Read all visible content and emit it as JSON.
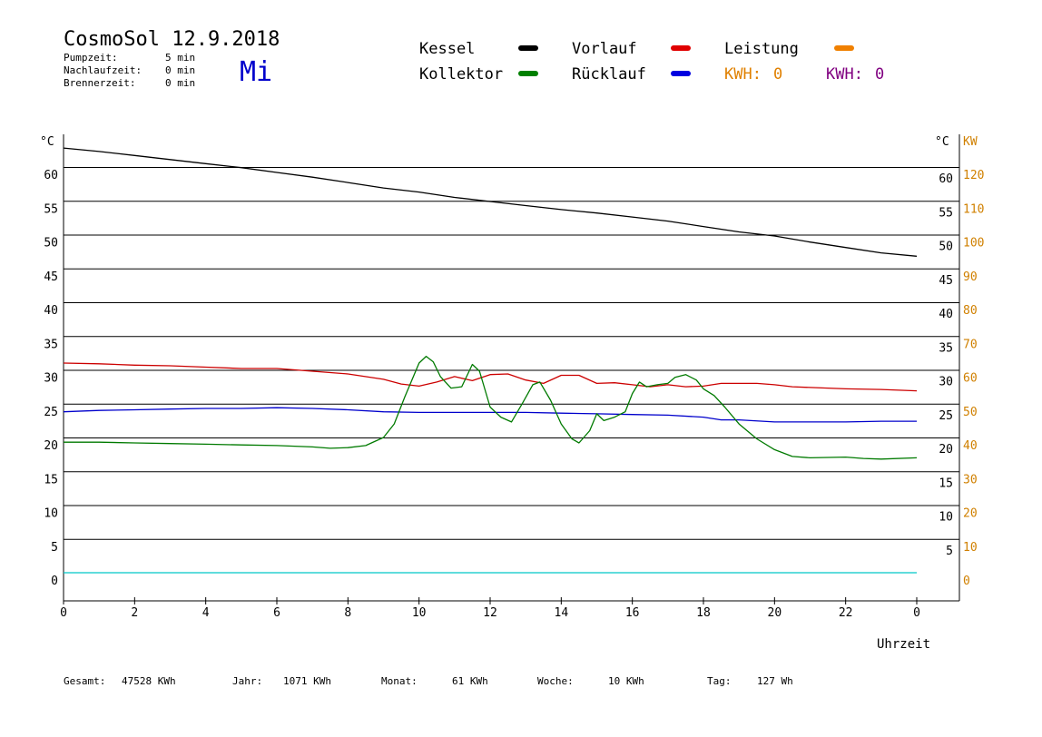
{
  "header": {
    "title": "CosmoSol 12.9.2018",
    "day": "Mi",
    "stats": [
      {
        "label": "Pumpzeit:",
        "value": "5 min"
      },
      {
        "label": "Nachlaufzeit:",
        "value": "0 min"
      },
      {
        "label": "Brennerzeit:",
        "value": "0 min"
      }
    ]
  },
  "legend": {
    "items": [
      {
        "label": "Kessel",
        "color": "#000000"
      },
      {
        "label": "Kollektor",
        "color": "#008000"
      },
      {
        "label": "Vorlauf",
        "color": "#e00000"
      },
      {
        "label": "Rücklauf",
        "color": "#0000e0"
      },
      {
        "label": "Leistung",
        "color": "#f08000"
      }
    ],
    "kwh_orange": {
      "label": "KWH:",
      "value": "0",
      "color": "#e08000"
    },
    "kwh_purple": {
      "label": "KWH:",
      "value": "0",
      "color": "#800080"
    }
  },
  "axis": {
    "left_unit": "°C",
    "right_unit": "°C",
    "kw_unit": "KW",
    "xlabel": "Uhrzeit",
    "kw_color": "#d08000"
  },
  "footer": [
    {
      "label": "Gesamt:",
      "value": "47528 KWh"
    },
    {
      "label": "Jahr:",
      "value": "1071 KWh"
    },
    {
      "label": "Monat:",
      "value": "61 KWh"
    },
    {
      "label": "Woche:",
      "value": "10 KWh"
    },
    {
      "label": "Tag:",
      "value": "127 Wh"
    }
  ],
  "chart_data": {
    "type": "line",
    "xlim": [
      0,
      24
    ],
    "ylim": [
      -4,
      65
    ],
    "grid": true,
    "y_ticks_left": [
      0,
      5,
      10,
      15,
      20,
      25,
      30,
      35,
      40,
      45,
      50,
      55,
      60
    ],
    "y_ticks_right": [
      5,
      10,
      15,
      20,
      25,
      30,
      35,
      40,
      45,
      50,
      55,
      60
    ],
    "kw_ticks": [
      0,
      10,
      20,
      30,
      40,
      50,
      60,
      70,
      80,
      90,
      100,
      110,
      120
    ],
    "x_tick_labels": [
      "0",
      "2",
      "4",
      "6",
      "8",
      "10",
      "12",
      "14",
      "16",
      "18",
      "20",
      "22",
      "0"
    ],
    "series": [
      {
        "name": "Kessel",
        "color": "#000000",
        "points": [
          [
            0,
            62.8
          ],
          [
            1,
            62.3
          ],
          [
            2,
            61.7
          ],
          [
            3,
            61.1
          ],
          [
            4,
            60.5
          ],
          [
            5,
            59.9
          ],
          [
            6,
            59.2
          ],
          [
            7,
            58.5
          ],
          [
            8,
            57.7
          ],
          [
            9,
            56.9
          ],
          [
            10,
            56.3
          ],
          [
            11,
            55.5
          ],
          [
            12,
            54.9
          ],
          [
            13,
            54.3
          ],
          [
            14,
            53.7
          ],
          [
            15,
            53.2
          ],
          [
            16,
            52.6
          ],
          [
            17,
            52.0
          ],
          [
            18,
            51.2
          ],
          [
            19,
            50.4
          ],
          [
            20,
            49.8
          ],
          [
            21,
            48.9
          ],
          [
            22,
            48.1
          ],
          [
            23,
            47.3
          ],
          [
            24,
            46.8
          ]
        ]
      },
      {
        "name": "Vorlauf",
        "color": "#cc0000",
        "points": [
          [
            0,
            31.0
          ],
          [
            1,
            30.9
          ],
          [
            2,
            30.7
          ],
          [
            3,
            30.6
          ],
          [
            4,
            30.4
          ],
          [
            5,
            30.2
          ],
          [
            6,
            30.2
          ],
          [
            7,
            29.8
          ],
          [
            8,
            29.4
          ],
          [
            9,
            28.6
          ],
          [
            9.5,
            27.9
          ],
          [
            10,
            27.6
          ],
          [
            10.5,
            28.2
          ],
          [
            11,
            29.0
          ],
          [
            11.5,
            28.4
          ],
          [
            12,
            29.3
          ],
          [
            12.5,
            29.4
          ],
          [
            13,
            28.5
          ],
          [
            13.5,
            28.0
          ],
          [
            14,
            29.2
          ],
          [
            14.5,
            29.2
          ],
          [
            15,
            28.0
          ],
          [
            15.5,
            28.1
          ],
          [
            16,
            27.8
          ],
          [
            16.5,
            27.5
          ],
          [
            17,
            27.8
          ],
          [
            17.5,
            27.5
          ],
          [
            18,
            27.6
          ],
          [
            18.5,
            28.0
          ],
          [
            19,
            28.0
          ],
          [
            19.5,
            28.0
          ],
          [
            20,
            27.8
          ],
          [
            20.5,
            27.5
          ],
          [
            21,
            27.4
          ],
          [
            22,
            27.2
          ],
          [
            23,
            27.1
          ],
          [
            24,
            26.9
          ]
        ]
      },
      {
        "name": "Rücklauf",
        "color": "#0000cc",
        "points": [
          [
            0,
            23.8
          ],
          [
            1,
            24.0
          ],
          [
            2,
            24.1
          ],
          [
            3,
            24.2
          ],
          [
            4,
            24.3
          ],
          [
            5,
            24.3
          ],
          [
            6,
            24.4
          ],
          [
            7,
            24.3
          ],
          [
            8,
            24.1
          ],
          [
            9,
            23.8
          ],
          [
            10,
            23.7
          ],
          [
            11,
            23.7
          ],
          [
            12,
            23.7
          ],
          [
            13,
            23.7
          ],
          [
            14,
            23.6
          ],
          [
            15,
            23.5
          ],
          [
            16,
            23.4
          ],
          [
            17,
            23.3
          ],
          [
            18,
            23.0
          ],
          [
            18.5,
            22.6
          ],
          [
            19,
            22.6
          ],
          [
            20,
            22.3
          ],
          [
            21,
            22.3
          ],
          [
            22,
            22.3
          ],
          [
            23,
            22.4
          ],
          [
            24,
            22.4
          ]
        ]
      },
      {
        "name": "Kollektor",
        "color": "#007a00",
        "points": [
          [
            0,
            19.3
          ],
          [
            1,
            19.3
          ],
          [
            2,
            19.2
          ],
          [
            3,
            19.1
          ],
          [
            4,
            19.0
          ],
          [
            5,
            18.9
          ],
          [
            6,
            18.8
          ],
          [
            7,
            18.6
          ],
          [
            7.5,
            18.4
          ],
          [
            8,
            18.5
          ],
          [
            8.5,
            18.8
          ],
          [
            9,
            20.0
          ],
          [
            9.3,
            22.0
          ],
          [
            9.6,
            26.0
          ],
          [
            9.8,
            28.5
          ],
          [
            10.0,
            31.0
          ],
          [
            10.2,
            32.0
          ],
          [
            10.4,
            31.2
          ],
          [
            10.6,
            29.0
          ],
          [
            10.9,
            27.3
          ],
          [
            11.2,
            27.5
          ],
          [
            11.5,
            30.8
          ],
          [
            11.7,
            29.8
          ],
          [
            12,
            24.5
          ],
          [
            12.3,
            23.0
          ],
          [
            12.6,
            22.3
          ],
          [
            12.9,
            25.0
          ],
          [
            13.2,
            27.8
          ],
          [
            13.4,
            28.2
          ],
          [
            13.7,
            25.5
          ],
          [
            14.0,
            22.0
          ],
          [
            14.3,
            19.8
          ],
          [
            14.5,
            19.2
          ],
          [
            14.8,
            21.0
          ],
          [
            15.0,
            23.5
          ],
          [
            15.2,
            22.5
          ],
          [
            15.5,
            23.0
          ],
          [
            15.8,
            23.8
          ],
          [
            16.0,
            26.5
          ],
          [
            16.2,
            28.2
          ],
          [
            16.4,
            27.5
          ],
          [
            16.7,
            27.8
          ],
          [
            17.0,
            28.0
          ],
          [
            17.2,
            28.9
          ],
          [
            17.5,
            29.3
          ],
          [
            17.8,
            28.5
          ],
          [
            18.0,
            27.2
          ],
          [
            18.3,
            26.2
          ],
          [
            18.6,
            24.5
          ],
          [
            19.0,
            22.0
          ],
          [
            19.5,
            19.8
          ],
          [
            20.0,
            18.2
          ],
          [
            20.5,
            17.2
          ],
          [
            21,
            17.0
          ],
          [
            22,
            17.1
          ],
          [
            22.5,
            16.9
          ],
          [
            23,
            16.8
          ],
          [
            24,
            17.0
          ]
        ]
      },
      {
        "name": "Leistung",
        "color": "#00c8c8",
        "points": [
          [
            0,
            0
          ],
          [
            24,
            0
          ]
        ]
      }
    ]
  }
}
